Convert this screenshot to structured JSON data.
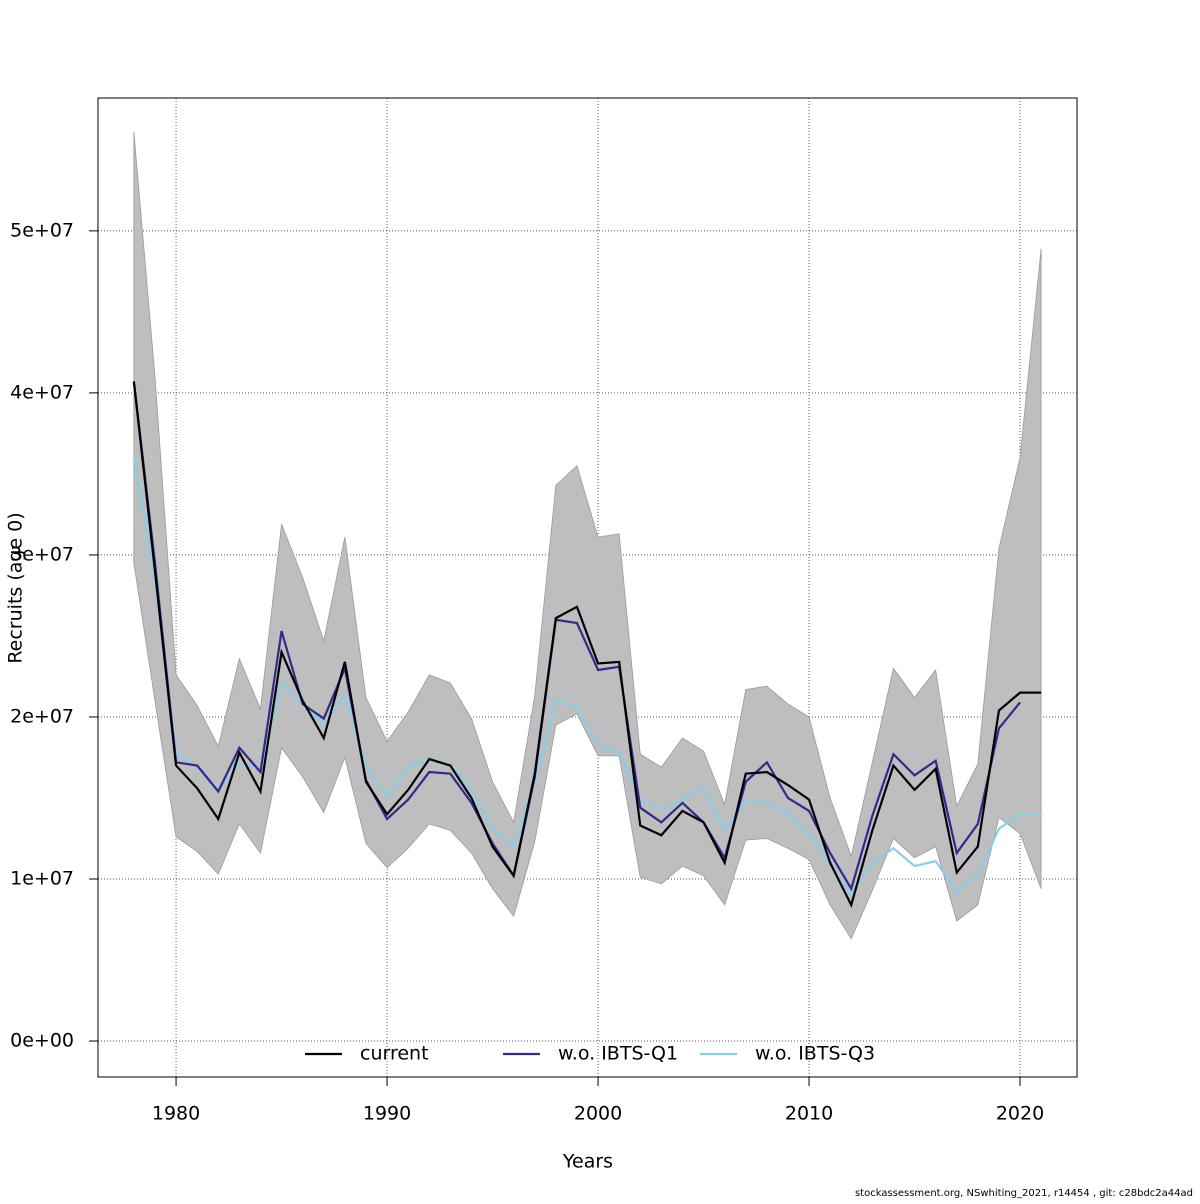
{
  "chart_data": {
    "type": "line",
    "xlabel": "Years",
    "ylabel": "Recruits (age 0)",
    "footnote": "stockassessment.org, NSwhiting_2021, r14454 , git: c28bdc2a44ad",
    "x": [
      1978,
      1979,
      1980,
      1981,
      1982,
      1983,
      1984,
      1985,
      1986,
      1987,
      1988,
      1989,
      1990,
      1991,
      1992,
      1993,
      1994,
      1995,
      1996,
      1997,
      1998,
      1999,
      2000,
      2001,
      2002,
      2003,
      2004,
      2005,
      2006,
      2007,
      2008,
      2009,
      2010,
      2011,
      2012,
      2013,
      2014,
      2015,
      2016,
      2017,
      2018,
      2019,
      2020,
      2021
    ],
    "band": {
      "color": "#bebebe",
      "upper": [
        56100000,
        41000000,
        22600000,
        20700000,
        18200000,
        23600000,
        20500000,
        31900000,
        28600000,
        24700000,
        31100000,
        21200000,
        18500000,
        20300000,
        22600000,
        22100000,
        19900000,
        16000000,
        13500000,
        21300000,
        34300000,
        35500000,
        31100000,
        31300000,
        17700000,
        16900000,
        18700000,
        17900000,
        14600000,
        21700000,
        21900000,
        20800000,
        20000000,
        15000000,
        11400000,
        17200000,
        23000000,
        21200000,
        22900000,
        14500000,
        17100000,
        30400000,
        36000000,
        48900000
      ],
      "lower": [
        29500000,
        21000000,
        12600000,
        11700000,
        10300000,
        13400000,
        11600000,
        18100000,
        16300000,
        14100000,
        17500000,
        12200000,
        10700000,
        11900000,
        13400000,
        13000000,
        11600000,
        9400000,
        7700000,
        12300000,
        19500000,
        20200000,
        17600000,
        17600000,
        10100000,
        9700000,
        10800000,
        10200000,
        8400000,
        12400000,
        12500000,
        11900000,
        11200000,
        8400000,
        6300000,
        9300000,
        12500000,
        11300000,
        12000000,
        7400000,
        8400000,
        13800000,
        12800000,
        9400000
      ]
    },
    "series": [
      {
        "name": "current",
        "color": "#000000",
        "values": [
          40700000,
          29000000,
          17000000,
          15600000,
          13700000,
          17800000,
          15400000,
          24000000,
          21000000,
          18700000,
          23400000,
          16000000,
          14000000,
          15500000,
          17400000,
          17000000,
          15000000,
          12000000,
          10200000,
          16500000,
          26100000,
          26800000,
          23300000,
          23400000,
          13300000,
          12700000,
          14200000,
          13500000,
          11000000,
          16500000,
          16600000,
          15800000,
          14900000,
          11000000,
          8400000,
          13000000,
          17000000,
          15500000,
          16800000,
          10400000,
          12000000,
          20400000,
          21500000,
          21500000
        ]
      },
      {
        "name": "w.o. IBTS-Q1",
        "color": "#33288c",
        "values": [
          40700000,
          29500000,
          17200000,
          17000000,
          15400000,
          18100000,
          16600000,
          25300000,
          20800000,
          19900000,
          23000000,
          16100000,
          13700000,
          14900000,
          16600000,
          16500000,
          14700000,
          12200000,
          10200000,
          16300000,
          26000000,
          25800000,
          22900000,
          23100000,
          14400000,
          13500000,
          14700000,
          13500000,
          11300000,
          16000000,
          17200000,
          15000000,
          14200000,
          11600000,
          9400000,
          13900000,
          17700000,
          16400000,
          17300000,
          11600000,
          13400000,
          19300000,
          20900000,
          null
        ]
      },
      {
        "name": "w.o. IBTS-Q3",
        "color": "#87ceeb",
        "values": [
          36100000,
          28500000,
          17800000,
          16900000,
          15400000,
          17100000,
          16800000,
          22100000,
          20800000,
          19500000,
          21400000,
          17000000,
          15100000,
          16900000,
          17400000,
          17100000,
          15500000,
          13100000,
          12000000,
          16000000,
          21000000,
          20600000,
          18300000,
          17800000,
          14900000,
          14300000,
          14900000,
          15600000,
          13000000,
          14900000,
          14700000,
          14100000,
          12800000,
          10900000,
          9000000,
          11000000,
          11900000,
          10800000,
          11100000,
          9200000,
          10300000,
          13100000,
          14000000,
          14000000
        ]
      }
    ],
    "xlim": [
      1976.3,
      2022.7
    ],
    "xticks": [
      1980,
      1990,
      2000,
      2010,
      2020
    ],
    "ylim": [
      -2220000,
      58200000
    ],
    "yticks": [
      {
        "value": 0,
        "label": "0e+00"
      },
      {
        "value": 10000000,
        "label": "1e+07"
      },
      {
        "value": 20000000,
        "label": "2e+07"
      },
      {
        "value": 30000000,
        "label": "3e+07"
      },
      {
        "value": 40000000,
        "label": "4e+07"
      },
      {
        "value": 50000000,
        "label": "5e+07"
      }
    ],
    "grid": true,
    "legend": "bottom"
  }
}
